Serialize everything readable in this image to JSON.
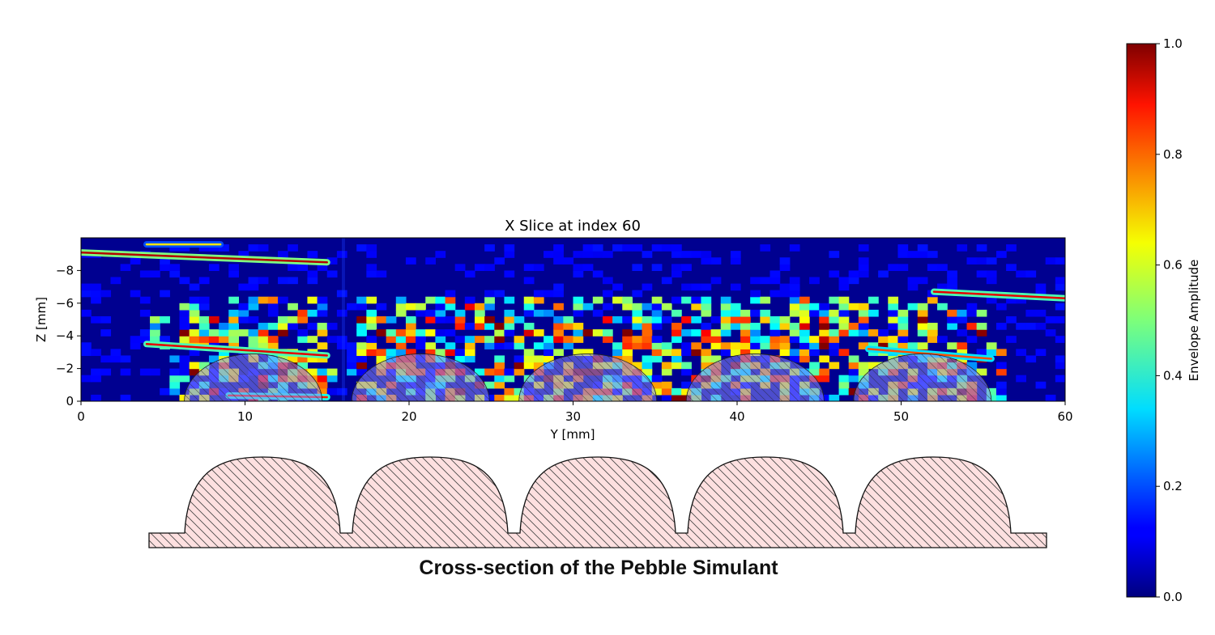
{
  "chart_data": [
    {
      "type": "heatmap",
      "title": "X Slice at index 60",
      "xlabel": "Y [mm]",
      "ylabel": "Z [mm]",
      "xlim": [
        0,
        60
      ],
      "ylim": [
        0,
        -10
      ],
      "x_ticks": [
        0,
        10,
        20,
        30,
        40,
        50,
        60
      ],
      "y_ticks": [
        0,
        -2,
        -4,
        -6,
        -8
      ],
      "colormap": "jet",
      "colorbar": {
        "label": "Envelope Amplitude",
        "range": [
          0.0,
          1.0
        ],
        "ticks": [
          "0.0",
          "0.2",
          "0.4",
          "0.6",
          "0.8",
          "1.0"
        ]
      },
      "overlay_domes": [
        {
          "center_y": 10.5,
          "radius": 4.2,
          "height": 2.9
        },
        {
          "center_y": 20.7,
          "radius": 4.2,
          "height": 2.9
        },
        {
          "center_y": 30.9,
          "radius": 4.2,
          "height": 2.9
        },
        {
          "center_y": 41.1,
          "radius": 4.2,
          "height": 2.9
        },
        {
          "center_y": 51.3,
          "radius": 4.2,
          "height": 2.9
        }
      ],
      "reflectors": [
        {
          "y0": 0,
          "z0": -9.1,
          "y1": 15,
          "z1": -8.5,
          "amp": 0.85
        },
        {
          "y0": 4,
          "z0": -9.6,
          "y1": 8.5,
          "z1": -9.6,
          "amp": 0.55
        },
        {
          "y0": 4,
          "z0": -3.5,
          "y1": 15,
          "z1": -2.8,
          "amp": 0.8
        },
        {
          "y0": 52,
          "z0": -6.7,
          "y1": 60,
          "z1": -6.3,
          "amp": 0.8
        },
        {
          "y0": 9,
          "z0": -0.35,
          "y1": 15,
          "z1": -0.25,
          "amp": 0.75
        },
        {
          "y0": 48,
          "z0": -3.2,
          "y1": 55.5,
          "z1": -2.6,
          "amp": 0.7
        }
      ]
    },
    {
      "type": "diagram",
      "title": "Cross-section of the Pebble Simulant",
      "dome_count": 5
    }
  ]
}
